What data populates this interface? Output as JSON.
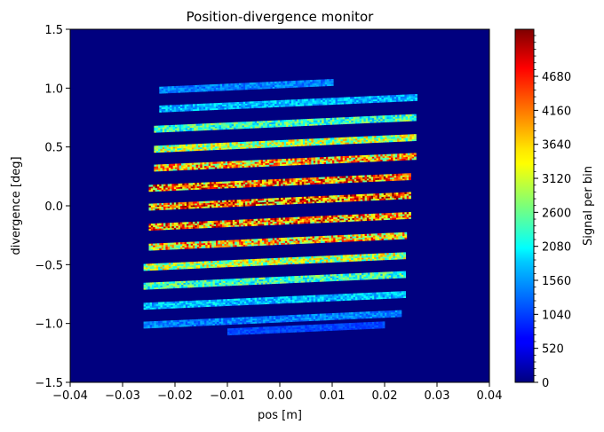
{
  "chart_data": {
    "type": "heatmap",
    "title": "Position-divergence monitor",
    "xlabel": "pos [m]",
    "ylabel": "divergence [deg]",
    "xlim": [
      -0.04,
      0.04
    ],
    "ylim": [
      -1.5,
      1.5
    ],
    "x_ticks": [
      -0.04,
      -0.03,
      -0.02,
      -0.01,
      0.0,
      0.01,
      0.02,
      0.03,
      0.04
    ],
    "x_tick_labels": [
      "−0.04",
      "−0.03",
      "−0.02",
      "−0.01",
      "0.00",
      "0.01",
      "0.02",
      "0.03",
      "0.04"
    ],
    "y_ticks": [
      1.5,
      1.0,
      0.5,
      0.0,
      -0.5,
      -1.0,
      -1.5
    ],
    "y_tick_labels": [
      "1.5",
      "1.0",
      "0.5",
      "0.0",
      "−0.5",
      "−1.0",
      "−1.5"
    ],
    "colorbar": {
      "label": "Signal per bin",
      "colormap": "jet",
      "min": 0,
      "max": 5400,
      "ticks": [
        0,
        520,
        1040,
        1560,
        2080,
        2600,
        3120,
        3640,
        4160,
        4680
      ],
      "tick_labels": [
        "0",
        "520",
        "1040",
        "1560",
        "2080",
        "2600",
        "3120",
        "3640",
        "4160",
        "4680"
      ]
    },
    "background_value": 0,
    "stripes": [
      {
        "divergence_at_center": 1.03,
        "x_start": -0.023,
        "x_end": 0.01,
        "signal": 800
      },
      {
        "divergence_at_center": 0.87,
        "x_start": -0.023,
        "x_end": 0.026,
        "signal": 1150
      },
      {
        "divergence_at_center": 0.7,
        "x_start": -0.024,
        "x_end": 0.026,
        "signal": 1900
      },
      {
        "divergence_at_center": 0.53,
        "x_start": -0.024,
        "x_end": 0.026,
        "signal": 2600
      },
      {
        "divergence_at_center": 0.37,
        "x_start": -0.024,
        "x_end": 0.026,
        "signal": 3400
      },
      {
        "divergence_at_center": 0.2,
        "x_start": -0.025,
        "x_end": 0.025,
        "signal": 3700
      },
      {
        "divergence_at_center": 0.04,
        "x_start": -0.025,
        "x_end": 0.025,
        "signal": 3900
      },
      {
        "divergence_at_center": -0.13,
        "x_start": -0.025,
        "x_end": 0.025,
        "signal": 3700
      },
      {
        "divergence_at_center": -0.3,
        "x_start": -0.025,
        "x_end": 0.024,
        "signal": 3300
      },
      {
        "divergence_at_center": -0.47,
        "x_start": -0.026,
        "x_end": 0.024,
        "signal": 2600
      },
      {
        "divergence_at_center": -0.63,
        "x_start": -0.026,
        "x_end": 0.024,
        "signal": 1900
      },
      {
        "divergence_at_center": -0.8,
        "x_start": -0.026,
        "x_end": 0.024,
        "signal": 1200
      },
      {
        "divergence_at_center": -0.96,
        "x_start": -0.026,
        "x_end": 0.023,
        "signal": 800
      },
      {
        "divergence_at_center": -1.05,
        "x_start": -0.01,
        "x_end": 0.02,
        "signal": 450
      }
    ],
    "stripe_slope_deg_per_m": 2.0,
    "grid": false
  }
}
